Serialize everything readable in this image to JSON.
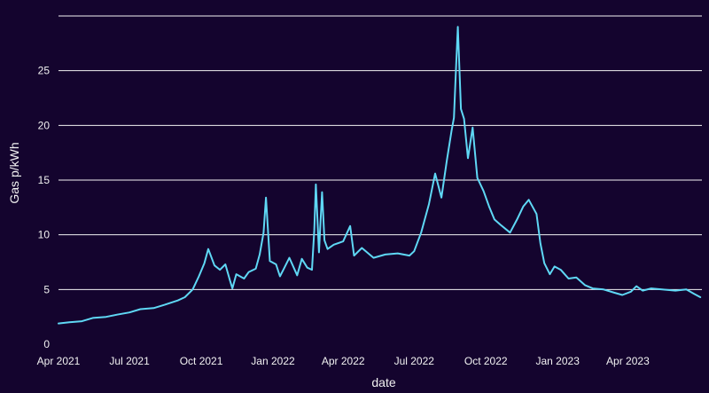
{
  "colors": {
    "background": "#14042e",
    "line": "#5fd8f5",
    "grid": "#ffffff",
    "text": "#f2f2f2"
  },
  "chart_data": {
    "type": "line",
    "xlabel": "date",
    "ylabel": "Gas p/kWh",
    "x_type": "date",
    "xlim": [
      "2021-04-01",
      "2023-07-05"
    ],
    "ylim": [
      0,
      30
    ],
    "grid": "horizontal",
    "legend": "none",
    "x_ticks": [
      {
        "date": "2021-04-01",
        "label": "Apr 2021"
      },
      {
        "date": "2021-07-01",
        "label": "Jul 2021"
      },
      {
        "date": "2021-10-01",
        "label": "Oct 2021"
      },
      {
        "date": "2022-01-01",
        "label": "Jan 2022"
      },
      {
        "date": "2022-04-01",
        "label": "Apr 2022"
      },
      {
        "date": "2022-07-01",
        "label": "Jul 2022"
      },
      {
        "date": "2022-10-01",
        "label": "Oct 2022"
      },
      {
        "date": "2023-01-01",
        "label": "Jan 2023"
      },
      {
        "date": "2023-04-01",
        "label": "Apr 2023"
      }
    ],
    "y_ticks": [
      0,
      5,
      10,
      15,
      20,
      25
    ],
    "series": [
      {
        "x": [
          "2021-04-01",
          "2021-04-15",
          "2021-05-01",
          "2021-05-15",
          "2021-06-01",
          "2021-06-15",
          "2021-07-01",
          "2021-07-15",
          "2021-08-01",
          "2021-08-15",
          "2021-09-01",
          "2021-09-10",
          "2021-09-20",
          "2021-09-28",
          "2021-10-05",
          "2021-10-10",
          "2021-10-18",
          "2021-10-25",
          "2021-11-01",
          "2021-11-07",
          "2021-11-10",
          "2021-11-15",
          "2021-11-25",
          "2021-12-01",
          "2021-12-10",
          "2021-12-15",
          "2021-12-20",
          "2021-12-23",
          "2021-12-28",
          "2022-01-05",
          "2022-01-10",
          "2022-01-15",
          "2022-01-22",
          "2022-02-01",
          "2022-02-07",
          "2022-02-14",
          "2022-02-20",
          "2022-02-23",
          "2022-02-25",
          "2022-03-01",
          "2022-03-05",
          "2022-03-08",
          "2022-03-12",
          "2022-03-20",
          "2022-04-01",
          "2022-04-10",
          "2022-04-15",
          "2022-04-25",
          "2022-05-10",
          "2022-05-25",
          "2022-06-10",
          "2022-06-25",
          "2022-07-01",
          "2022-07-10",
          "2022-07-20",
          "2022-07-28",
          "2022-08-05",
          "2022-08-12",
          "2022-08-18",
          "2022-08-21",
          "2022-08-23",
          "2022-08-26",
          "2022-08-30",
          "2022-09-03",
          "2022-09-08",
          "2022-09-14",
          "2022-09-20",
          "2022-09-28",
          "2022-10-05",
          "2022-10-12",
          "2022-10-20",
          "2022-11-01",
          "2022-11-10",
          "2022-11-18",
          "2022-11-25",
          "2022-12-05",
          "2022-12-10",
          "2022-12-15",
          "2022-12-22",
          "2022-12-28",
          "2023-01-05",
          "2023-01-15",
          "2023-01-25",
          "2023-02-05",
          "2023-02-15",
          "2023-03-01",
          "2023-03-15",
          "2023-03-25",
          "2023-04-05",
          "2023-04-12",
          "2023-04-20",
          "2023-05-01",
          "2023-05-15",
          "2023-06-01",
          "2023-06-15",
          "2023-06-25",
          "2023-07-03"
        ],
        "values": [
          1.9,
          2.0,
          2.1,
          2.4,
          2.5,
          2.7,
          2.9,
          3.2,
          3.3,
          3.6,
          4.0,
          4.3,
          5.0,
          6.2,
          7.4,
          8.7,
          7.2,
          6.8,
          7.3,
          5.8,
          5.1,
          6.4,
          6.0,
          6.6,
          6.9,
          8.2,
          10.2,
          13.4,
          7.6,
          7.3,
          6.2,
          6.9,
          7.9,
          6.3,
          7.8,
          7.0,
          6.8,
          10.4,
          14.6,
          8.4,
          13.9,
          9.5,
          8.7,
          9.1,
          9.4,
          10.8,
          8.1,
          8.8,
          7.9,
          8.2,
          8.3,
          8.1,
          8.5,
          10.2,
          12.8,
          15.6,
          13.4,
          16.8,
          19.5,
          20.7,
          24.0,
          29.0,
          21.5,
          20.6,
          17.0,
          19.8,
          15.2,
          14.0,
          12.6,
          11.4,
          10.9,
          10.2,
          11.4,
          12.6,
          13.2,
          11.9,
          9.2,
          7.4,
          6.4,
          7.1,
          6.8,
          6.0,
          6.1,
          5.4,
          5.1,
          5.0,
          4.7,
          4.5,
          4.8,
          5.3,
          4.9,
          5.1,
          5.0,
          4.9,
          5.0,
          4.6,
          4.3
        ]
      }
    ]
  }
}
